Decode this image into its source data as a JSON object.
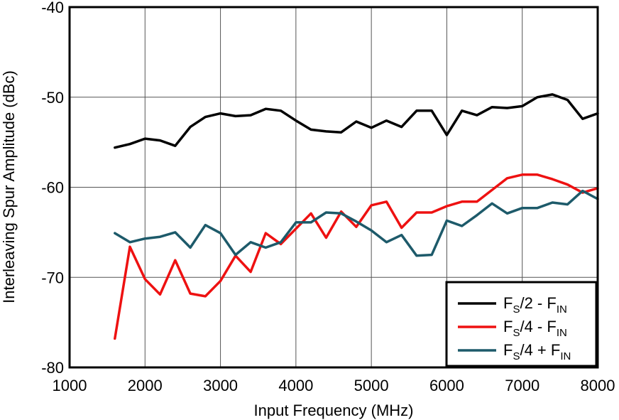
{
  "chart_data": {
    "type": "line",
    "title": "",
    "xlabel": "Input Frequency (MHz)",
    "ylabel": "Interleaving Spur Amplitude (dBc)",
    "xlim": [
      1000,
      8000
    ],
    "ylim": [
      -80,
      -40
    ],
    "x_ticks": [
      "1000",
      "2000",
      "3000",
      "4000",
      "5000",
      "6000",
      "7000",
      "8000"
    ],
    "y_ticks": [
      "-40",
      "-50",
      "-60",
      "-70",
      "-80"
    ],
    "x_tick_values": [
      1000,
      2000,
      3000,
      4000,
      5000,
      6000,
      7000,
      8000
    ],
    "y_tick_values": [
      -40,
      -50,
      -60,
      -70,
      -80
    ],
    "grid": true,
    "legend_position": "bottom-right",
    "x": [
      1600,
      1800,
      2000,
      2200,
      2400,
      2600,
      2800,
      3000,
      3200,
      3400,
      3600,
      3800,
      4000,
      4200,
      4400,
      4600,
      4800,
      5000,
      5200,
      5400,
      5600,
      5800,
      6000,
      6200,
      6400,
      6600,
      6800,
      7000,
      7200,
      7400,
      7600,
      7800,
      8000
    ],
    "series": [
      {
        "name": "FS/2 - FIN",
        "label_parts": [
          [
            "F",
            ""
          ],
          [
            "S",
            "sub"
          ],
          [
            "/2 - F",
            ""
          ],
          [
            "IN",
            "sub"
          ]
        ],
        "color": "#000000",
        "values": [
          -55.6,
          -55.2,
          -54.6,
          -54.8,
          -55.4,
          -53.3,
          -52.2,
          -51.8,
          -52.1,
          -52.0,
          -51.3,
          -51.5,
          -52.6,
          -53.6,
          -53.8,
          -53.9,
          -52.7,
          -53.4,
          -52.6,
          -53.3,
          -51.5,
          -51.5,
          -54.2,
          -51.5,
          -52.0,
          -51.1,
          -51.2,
          -51.0,
          -50.0,
          -49.7,
          -50.3,
          -52.4,
          -51.8
        ]
      },
      {
        "name": "FS/4 - FIN",
        "label_parts": [
          [
            "F",
            ""
          ],
          [
            "S",
            "sub"
          ],
          [
            "/4 - F",
            ""
          ],
          [
            "IN",
            "sub"
          ]
        ],
        "color": "#ee1111",
        "values": [
          -76.8,
          -66.6,
          -70.2,
          -71.9,
          -68.1,
          -71.8,
          -72.1,
          -70.4,
          -67.6,
          -69.4,
          -65.1,
          -66.3,
          -64.6,
          -62.9,
          -65.6,
          -62.7,
          -64.4,
          -62.0,
          -61.6,
          -64.5,
          -62.8,
          -62.8,
          -62.1,
          -61.6,
          -61.6,
          -60.3,
          -59.0,
          -58.6,
          -58.6,
          -59.1,
          -59.7,
          -60.6,
          -60.1
        ]
      },
      {
        "name": "FS/4 + FIN",
        "label_parts": [
          [
            "F",
            ""
          ],
          [
            "S",
            "sub"
          ],
          [
            "/4 + F",
            ""
          ],
          [
            "IN",
            "sub"
          ]
        ],
        "color": "#1d5a6a",
        "values": [
          -65.1,
          -66.1,
          -65.7,
          -65.5,
          -65.0,
          -66.7,
          -64.2,
          -65.1,
          -67.5,
          -66.1,
          -66.7,
          -66.1,
          -63.9,
          -63.9,
          -62.8,
          -62.9,
          -63.8,
          -64.8,
          -66.1,
          -65.3,
          -67.6,
          -67.5,
          -63.7,
          -64.3,
          -63.1,
          -61.8,
          -62.9,
          -62.3,
          -62.3,
          -61.7,
          -61.9,
          -60.4,
          -61.3
        ]
      }
    ]
  }
}
